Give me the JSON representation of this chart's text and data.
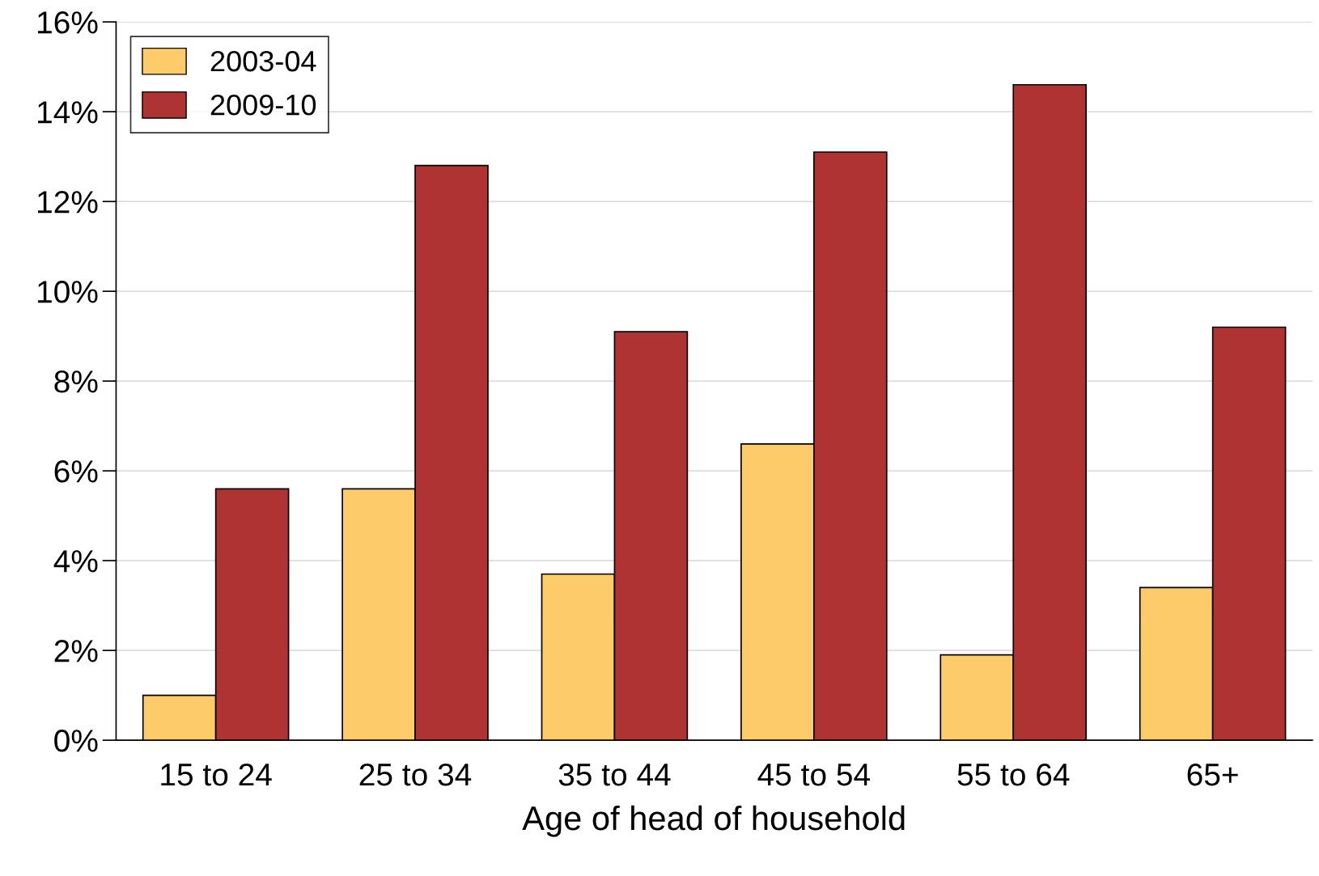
{
  "chart_data": {
    "type": "bar",
    "xlabel": "Age of head of household",
    "categories": [
      "15 to 24",
      "25 to 34",
      "35 to 44",
      "45 to 54",
      "55 to 64",
      "65+"
    ],
    "series": [
      {
        "name": "2003-04",
        "color": "#fecb6a",
        "values": [
          1.0,
          5.6,
          3.7,
          6.6,
          1.9,
          3.4
        ]
      },
      {
        "name": "2009-10",
        "color": "#b03333",
        "values": [
          5.6,
          12.8,
          9.1,
          13.1,
          14.6,
          9.2
        ]
      }
    ],
    "ylim": [
      0,
      16
    ],
    "yticks": [
      {
        "value": 0,
        "label": "0%"
      },
      {
        "value": 2,
        "label": "2%"
      },
      {
        "value": 4,
        "label": "4%"
      },
      {
        "value": 6,
        "label": "6%"
      },
      {
        "value": 8,
        "label": "8%"
      },
      {
        "value": 10,
        "label": "10%"
      },
      {
        "value": 12,
        "label": "12%"
      },
      {
        "value": 14,
        "label": "14%"
      },
      {
        "value": 16,
        "label": "16%"
      }
    ],
    "grid": "y",
    "legend": "top left"
  }
}
